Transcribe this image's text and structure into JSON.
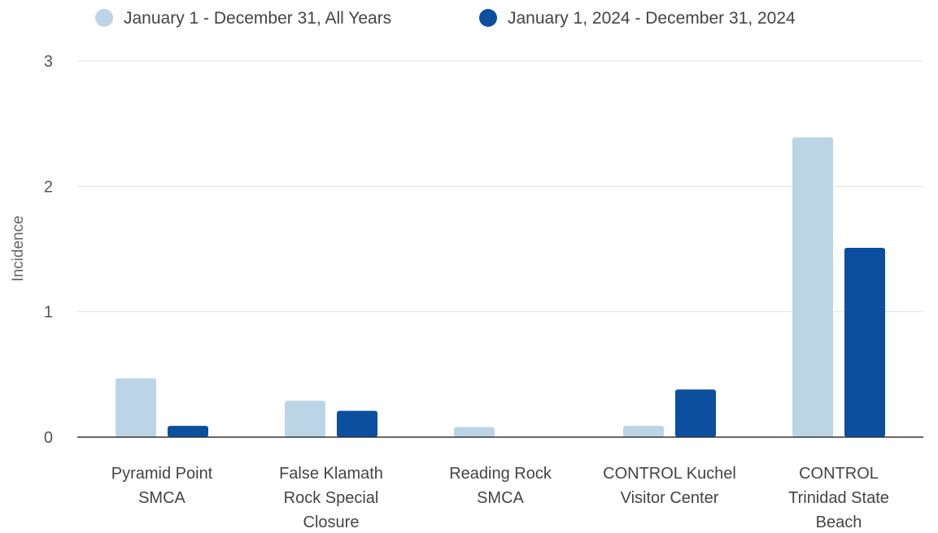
{
  "chart_data": {
    "type": "bar",
    "categories": [
      [
        "Pyramid Point",
        "SMCA"
      ],
      [
        "False Klamath",
        "Rock Special",
        "Closure"
      ],
      [
        "Reading Rock",
        "SMCA"
      ],
      [
        "CONTROL Kuchel",
        "Visitor Center"
      ],
      [
        "CONTROL",
        "Trinidad State",
        "Beach"
      ]
    ],
    "series": [
      {
        "name": "January 1 - December 31, All Years",
        "color": "#bcd5e6",
        "values": [
          0.47,
          0.29,
          0.08,
          0.09,
          2.39
        ]
      },
      {
        "name": "January 1, 2024 - December 31, 2024",
        "color": "#0b4f9e",
        "values": [
          0.09,
          0.21,
          0,
          0.38,
          1.51
        ]
      }
    ],
    "ylabel": "Incidence",
    "ylim": [
      0,
      3
    ],
    "yticks": [
      "0",
      "1",
      "2",
      "3"
    ],
    "grid": true,
    "legend": "top"
  }
}
